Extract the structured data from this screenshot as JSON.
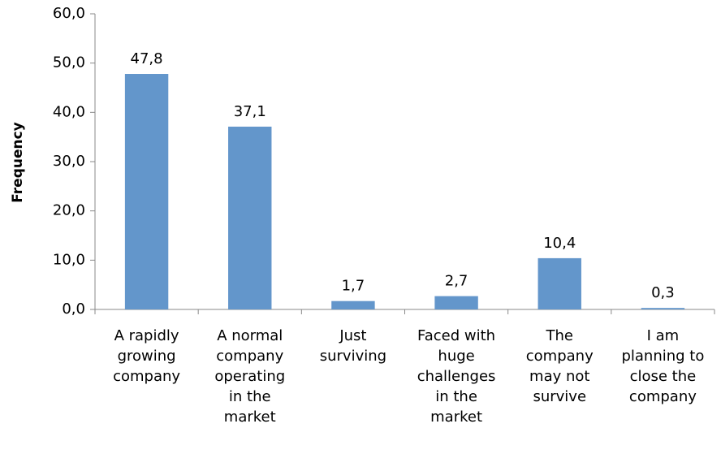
{
  "chart_data": {
    "type": "bar",
    "y_label": "Frequency",
    "categories": [
      "A rapidly growing company",
      "A normal company operating in the market",
      "Just surviving",
      "Faced with huge challenges in the market",
      "The company may not survive",
      "I am planning to close the company"
    ],
    "values": [
      47.8,
      37.1,
      1.7,
      2.7,
      10.4,
      0.3
    ],
    "value_labels": [
      "47,8",
      "37,1",
      "1,7",
      "2,7",
      "10,4",
      "0,3"
    ],
    "color": "#6396cb",
    "ylim": [
      0,
      60
    ],
    "yticks": [
      {
        "value": 0,
        "label": "0,0"
      },
      {
        "value": 10,
        "label": "10,0"
      },
      {
        "value": 20,
        "label": "20,0"
      },
      {
        "value": 30,
        "label": "30,0"
      },
      {
        "value": 40,
        "label": "40,0"
      },
      {
        "value": 50,
        "label": "50,0"
      },
      {
        "value": 60,
        "label": "60,0"
      }
    ],
    "grid": false
  }
}
